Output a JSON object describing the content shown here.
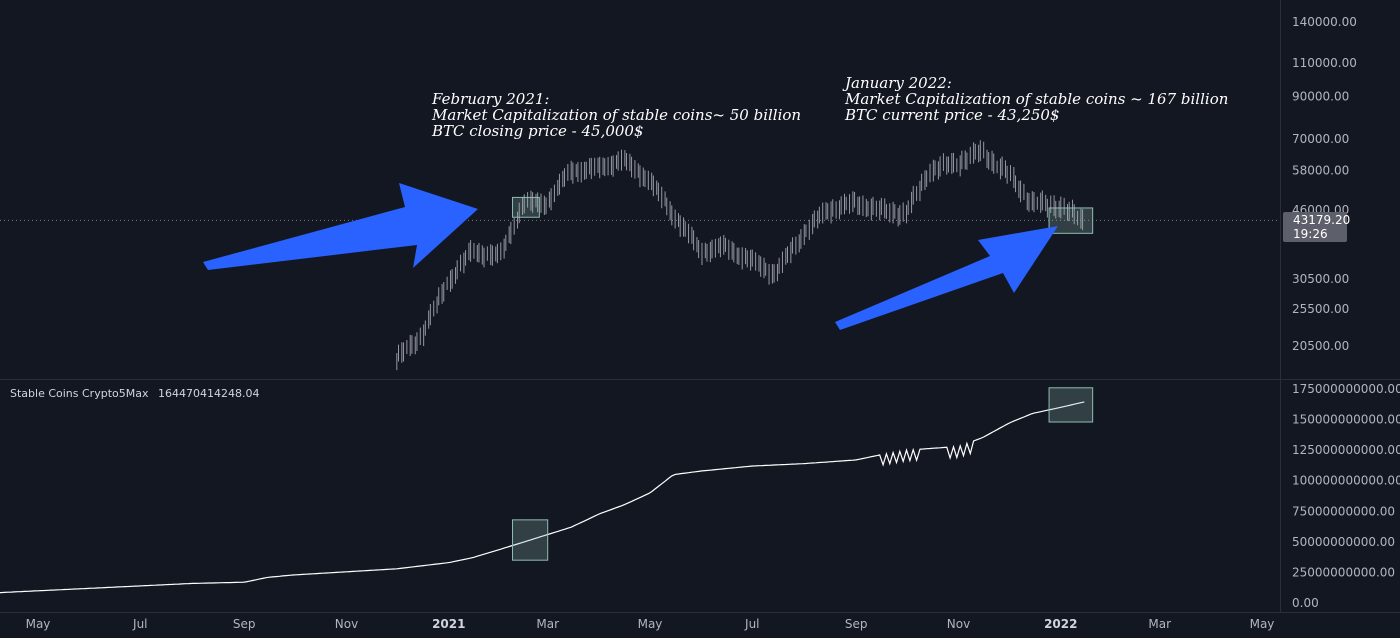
{
  "annotations": {
    "feb2021": [
      "February 2021:",
      "Market Capitalization of stable coins~ 50 billion",
      "BTC closing price - 45,000$"
    ],
    "jan2022": [
      "January 2022:",
      "Market Capitalization of stable coins ~ 167 billion",
      "BTC current price - 43,250$"
    ]
  },
  "price_tag": {
    "value": "43179.20",
    "countdown": "19:26"
  },
  "indicator": {
    "name": "Stable Coins Crypto5Max",
    "value": "164470414248.04"
  },
  "colors": {
    "background": "#131722",
    "arrow": "#2962ff",
    "highlight_box": "#8fbcb3",
    "line": "#ffffff"
  },
  "chart_data": [
    {
      "type": "line",
      "title": "",
      "series_kind": "ohlc",
      "yscale": "log",
      "y_ticks": [
        20500,
        25500,
        30500,
        46000,
        58000,
        70000,
        90000,
        110000,
        140000
      ],
      "y_tick_labels": [
        "20500.00",
        "25500.00",
        "30500.00",
        "46000.00",
        "58000.00",
        "70000.00",
        "90000.00",
        "110000.00",
        "140000.00"
      ],
      "x": [
        "2020-12-01",
        "2020-12-15",
        "2021-01-01",
        "2021-01-15",
        "2021-02-01",
        "2021-02-15",
        "2021-03-01",
        "2021-03-15",
        "2021-04-01",
        "2021-04-15",
        "2021-05-01",
        "2021-05-15",
        "2021-06-01",
        "2021-06-15",
        "2021-07-01",
        "2021-07-15",
        "2021-08-01",
        "2021-08-15",
        "2021-09-01",
        "2021-09-15",
        "2021-10-01",
        "2021-10-15",
        "2021-11-01",
        "2021-11-15",
        "2021-12-01",
        "2021-12-15",
        "2022-01-01",
        "2022-01-15"
      ],
      "values": [
        19000,
        21500,
        30000,
        36000,
        35000,
        48000,
        48000,
        58000,
        59000,
        62000,
        55000,
        45000,
        36000,
        37000,
        34000,
        31500,
        40000,
        46000,
        48000,
        46000,
        45000,
        58000,
        61000,
        65000,
        57000,
        48000,
        47000,
        43179.2
      ],
      "current_price": 43179.2,
      "highlight_boxes": [
        {
          "x_start": "2021-02-08",
          "x_end": "2021-02-24",
          "y_low": 44000,
          "y_high": 49500
        },
        {
          "x_start": "2021-12-25",
          "x_end": "2022-01-20",
          "y_low": 40000,
          "y_high": 46500
        }
      ]
    },
    {
      "type": "line",
      "title": "Stable Coins Crypto5Max",
      "ylim": [
        0,
        175000000000
      ],
      "y_ticks": [
        0,
        25000000000,
        50000000000,
        75000000000,
        100000000000,
        125000000000,
        150000000000,
        175000000000
      ],
      "y_tick_labels": [
        "0.00",
        "25000000000.00",
        "50000000000.00",
        "75000000000.00",
        "100000000000.00",
        "125000000000.00",
        "150000000000.00",
        "175000000000.00"
      ],
      "x": [
        "2020-04-01",
        "2020-05-01",
        "2020-06-01",
        "2020-07-01",
        "2020-08-01",
        "2020-09-01",
        "2020-09-15",
        "2020-10-01",
        "2020-11-01",
        "2020-12-01",
        "2021-01-01",
        "2021-01-15",
        "2021-02-01",
        "2021-02-15",
        "2021-03-01",
        "2021-03-15",
        "2021-04-01",
        "2021-04-15",
        "2021-05-01",
        "2021-05-15",
        "2021-06-01",
        "2021-07-01",
        "2021-08-01",
        "2021-09-01",
        "2021-09-15",
        "2021-10-01",
        "2021-11-01",
        "2021-11-15",
        "2021-12-01",
        "2021-12-15",
        "2022-01-01",
        "2022-01-15"
      ],
      "values": [
        8000000000,
        10000000000,
        12000000000,
        14000000000,
        16000000000,
        17000000000,
        21000000000,
        23000000000,
        25500000000,
        28000000000,
        33000000000,
        37000000000,
        44000000000,
        50000000000,
        56000000000,
        62000000000,
        73000000000,
        80000000000,
        90000000000,
        105000000000,
        108000000000,
        112000000000,
        114000000000,
        117000000000,
        121000000000,
        125000000000,
        128000000000,
        135000000000,
        147000000000,
        155000000000,
        160000000000,
        164470414248.04
      ],
      "current_value": 164470414248.04,
      "highlight_boxes": [
        {
          "x_start": "2021-02-08",
          "x_end": "2021-03-01",
          "y_low": 35000000000,
          "y_high": 68000000000
        },
        {
          "x_start": "2021-12-25",
          "x_end": "2022-01-20",
          "y_low": 148000000000,
          "y_high": 176000000000
        }
      ]
    }
  ],
  "time_axis": {
    "labels": [
      {
        "text": "May",
        "date": "2020-05-01",
        "bold": false
      },
      {
        "text": "Jul",
        "date": "2020-07-01",
        "bold": false
      },
      {
        "text": "Sep",
        "date": "2020-09-01",
        "bold": false
      },
      {
        "text": "Nov",
        "date": "2020-11-01",
        "bold": false
      },
      {
        "text": "2021",
        "date": "2021-01-01",
        "bold": true
      },
      {
        "text": "Mar",
        "date": "2021-03-01",
        "bold": false
      },
      {
        "text": "May",
        "date": "2021-05-01",
        "bold": false
      },
      {
        "text": "Jul",
        "date": "2021-07-01",
        "bold": false
      },
      {
        "text": "Sep",
        "date": "2021-09-01",
        "bold": false
      },
      {
        "text": "Nov",
        "date": "2021-11-01",
        "bold": false
      },
      {
        "text": "2022",
        "date": "2022-01-01",
        "bold": true
      },
      {
        "text": "Mar",
        "date": "2022-03-01",
        "bold": false
      },
      {
        "text": "May",
        "date": "2022-05-01",
        "bold": false
      }
    ]
  }
}
